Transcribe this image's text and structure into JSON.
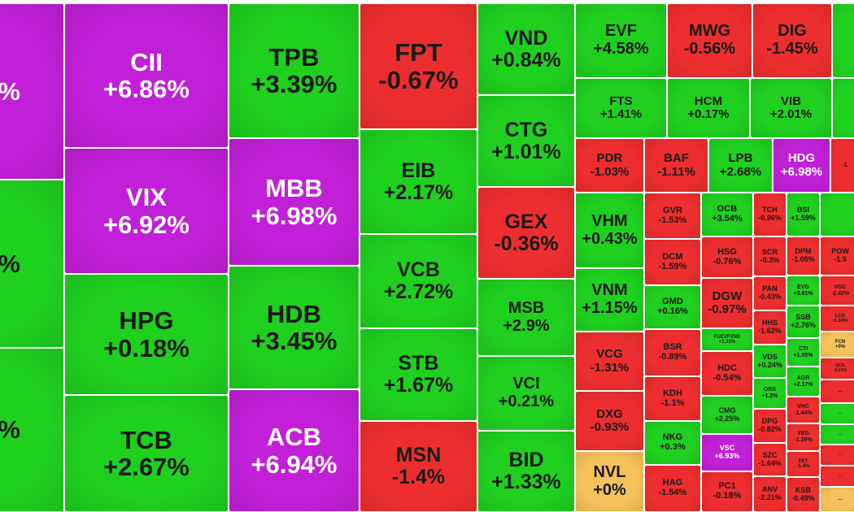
{
  "colors": {
    "ceiling": "#c21fd8",
    "up": "#1fd01f",
    "down": "#ee2e2e",
    "flat": "#f7c15a",
    "text_dark": "#1a1a1a",
    "text_light": "#ffffff"
  },
  "chart_data": {
    "type": "heatmap",
    "title": "",
    "items": [
      {
        "ticker": "",
        "change": "%",
        "status": "ceiling",
        "col": 0,
        "r": 0,
        "c": 0
      },
      {
        "ticker": "",
        "change": "%",
        "status": "up",
        "col": 0,
        "r": 0,
        "c": 1
      },
      {
        "ticker": "",
        "change": "%",
        "status": "up",
        "col": 0,
        "r": 0,
        "c": 2
      },
      {
        "ticker": "CII",
        "change": "+6.86%",
        "status": "ceiling",
        "col": 1,
        "r": 0,
        "c": 0
      },
      {
        "ticker": "VIX",
        "change": "+6.92%",
        "status": "ceiling",
        "col": 1,
        "r": 0,
        "c": 1
      },
      {
        "ticker": "HPG",
        "change": "+0.18%",
        "status": "up",
        "col": 1,
        "r": 0,
        "c": 2
      },
      {
        "ticker": "TCB",
        "change": "+2.67%",
        "status": "up",
        "col": 1,
        "r": 0,
        "c": 3
      },
      {
        "ticker": "TPB",
        "change": "+3.39%",
        "status": "up",
        "col": 2,
        "r": 0,
        "c": 0
      },
      {
        "ticker": "MBB",
        "change": "+6.98%",
        "status": "ceiling",
        "col": 2,
        "r": 0,
        "c": 1
      },
      {
        "ticker": "HDB",
        "change": "+3.45%",
        "status": "up",
        "col": 2,
        "r": 0,
        "c": 2
      },
      {
        "ticker": "ACB",
        "change": "+6.94%",
        "status": "ceiling",
        "col": 2,
        "r": 0,
        "c": 3
      },
      {
        "ticker": "FPT",
        "change": "-0.67%",
        "status": "down",
        "col": 3,
        "r": 0,
        "c": 0
      },
      {
        "ticker": "EIB",
        "change": "+2.17%",
        "status": "up",
        "col": 3,
        "r": 0,
        "c": 1
      },
      {
        "ticker": "VCB",
        "change": "+2.72%",
        "status": "up",
        "col": 3,
        "r": 0,
        "c": 2
      },
      {
        "ticker": "STB",
        "change": "+1.67%",
        "status": "up",
        "col": 3,
        "r": 0,
        "c": 3
      },
      {
        "ticker": "MSN",
        "change": "-1.4%",
        "status": "down",
        "col": 3,
        "r": 0,
        "c": 4
      },
      {
        "ticker": "VND",
        "change": "+0.84%",
        "status": "up",
        "col": 4,
        "r": 0,
        "c": 0
      },
      {
        "ticker": "CTG",
        "change": "+1.01%",
        "status": "up",
        "col": 4,
        "r": 0,
        "c": 1
      },
      {
        "ticker": "GEX",
        "change": "-0.36%",
        "status": "down",
        "col": 4,
        "r": 0,
        "c": 2
      },
      {
        "ticker": "MSB",
        "change": "+2.9%",
        "status": "up",
        "col": 4,
        "r": 0,
        "c": 3
      },
      {
        "ticker": "VCI",
        "change": "+0.21%",
        "status": "up",
        "col": 4,
        "r": 0,
        "c": 4
      },
      {
        "ticker": "BID",
        "change": "+1.33%",
        "status": "up",
        "col": 4,
        "r": 0,
        "c": 5
      },
      {
        "ticker": "EVF",
        "change": "+4.58%",
        "status": "up",
        "col": 5,
        "r": 0,
        "c": 0
      },
      {
        "ticker": "MWG",
        "change": "-0.56%",
        "status": "down",
        "col": 5,
        "r": 0,
        "c": 1
      },
      {
        "ticker": "DIG",
        "change": "-1.45%",
        "status": "down",
        "col": 5,
        "r": 0,
        "c": 2
      },
      {
        "ticker": "",
        "change": "",
        "status": "up",
        "col": 5,
        "r": 0,
        "c": 3
      },
      {
        "ticker": "FTS",
        "change": "+1.41%",
        "status": "up",
        "col": 5,
        "r": 1,
        "c": 0
      },
      {
        "ticker": "HCM",
        "change": "+0.17%",
        "status": "up",
        "col": 5,
        "r": 1,
        "c": 1
      },
      {
        "ticker": "VIB",
        "change": "+2.01%",
        "status": "up",
        "col": 5,
        "r": 1,
        "c": 2
      },
      {
        "ticker": "",
        "change": "",
        "status": "up",
        "col": 5,
        "r": 1,
        "c": 3
      },
      {
        "ticker": "PDR",
        "change": "-1.03%",
        "status": "down",
        "col": 5,
        "r": 2,
        "c": 0
      },
      {
        "ticker": "BAF",
        "change": "-1.11%",
        "status": "down",
        "col": 5,
        "r": 2,
        "c": 1
      },
      {
        "ticker": "LPB",
        "change": "+2.68%",
        "status": "up",
        "col": 5,
        "r": 2,
        "c": 2
      },
      {
        "ticker": "HDG",
        "change": "+6.98%",
        "status": "ceiling",
        "col": 5,
        "r": 2,
        "c": 3
      },
      {
        "ticker": "",
        "change": "-1.",
        "status": "down",
        "col": 5,
        "r": 2,
        "c": 4
      },
      {
        "ticker": "VHM",
        "change": "+0.43%",
        "status": "up",
        "col": 6,
        "r": 0,
        "c": 0
      },
      {
        "ticker": "VNM",
        "change": "+1.15%",
        "status": "up",
        "col": 6,
        "r": 0,
        "c": 1
      },
      {
        "ticker": "VCG",
        "change": "-1.31%",
        "status": "down",
        "col": 6,
        "r": 0,
        "c": 2
      },
      {
        "ticker": "DXG",
        "change": "-0.93%",
        "status": "down",
        "col": 6,
        "r": 0,
        "c": 3
      },
      {
        "ticker": "NVL",
        "change": "+0%",
        "status": "flat",
        "col": 6,
        "r": 0,
        "c": 4
      },
      {
        "ticker": "GVR",
        "change": "-1.53%",
        "status": "down",
        "col": 7,
        "r": 0,
        "c": 0
      },
      {
        "ticker": "DCM",
        "change": "-1.59%",
        "status": "down",
        "col": 7,
        "r": 0,
        "c": 1
      },
      {
        "ticker": "GMD",
        "change": "+0.16%",
        "status": "up",
        "col": 7,
        "r": 0,
        "c": 2
      },
      {
        "ticker": "BSR",
        "change": "-0.89%",
        "status": "down",
        "col": 7,
        "r": 0,
        "c": 3
      },
      {
        "ticker": "KDH",
        "change": "-1.1%",
        "status": "down",
        "col": 7,
        "r": 0,
        "c": 4
      },
      {
        "ticker": "NKG",
        "change": "+0.3%",
        "status": "up",
        "col": 7,
        "r": 0,
        "c": 5
      },
      {
        "ticker": "HAG",
        "change": "-1.54%",
        "status": "down",
        "col": 7,
        "r": 0,
        "c": 6
      },
      {
        "ticker": "OCB",
        "change": "+3.54%",
        "status": "up",
        "col": 8,
        "r": 0,
        "c": 0
      },
      {
        "ticker": "HSG",
        "change": "-0.76%",
        "status": "down",
        "col": 8,
        "r": 0,
        "c": 1
      },
      {
        "ticker": "DGW",
        "change": "-0.97%",
        "status": "down",
        "col": 8,
        "r": 0,
        "c": 2
      },
      {
        "ticker": "FUEVFVND",
        "change": "+1.31%",
        "status": "up",
        "col": 8,
        "r": 0,
        "c": 3
      },
      {
        "ticker": "HDC",
        "change": "-0.54%",
        "status": "down",
        "col": 8,
        "r": 0,
        "c": 4
      },
      {
        "ticker": "CMG",
        "change": "+2.25%",
        "status": "up",
        "col": 8,
        "r": 0,
        "c": 5
      },
      {
        "ticker": "VSC",
        "change": "+6.93%",
        "status": "ceiling",
        "col": 8,
        "r": 0,
        "c": 6
      },
      {
        "ticker": "PC1",
        "change": "-0.18%",
        "status": "down",
        "col": 8,
        "r": 0,
        "c": 7
      },
      {
        "ticker": "TCH",
        "change": "-0.96%",
        "status": "down",
        "col": 9,
        "r": 0,
        "c": 0
      },
      {
        "ticker": "SCR",
        "change": "-0.3%",
        "status": "down",
        "col": 9,
        "r": 0,
        "c": 1
      },
      {
        "ticker": "PAN",
        "change": "-0.43%",
        "status": "down",
        "col": 9,
        "r": 0,
        "c": 2
      },
      {
        "ticker": "HHS",
        "change": "-1.62%",
        "status": "down",
        "col": 9,
        "r": 0,
        "c": 3
      },
      {
        "ticker": "VDS",
        "change": "+0.24%",
        "status": "up",
        "col": 9,
        "r": 0,
        "c": 4
      },
      {
        "ticker": "ORS",
        "change": "+1.2%",
        "status": "up",
        "col": 9,
        "r": 0,
        "c": 5
      },
      {
        "ticker": "DPG",
        "change": "-0.82%",
        "status": "down",
        "col": 9,
        "r": 0,
        "c": 6
      },
      {
        "ticker": "SZC",
        "change": "-1.64%",
        "status": "down",
        "col": 9,
        "r": 0,
        "c": 7
      },
      {
        "ticker": "ANV",
        "change": "-2.21%",
        "status": "down",
        "col": 9,
        "r": 0,
        "c": 8
      },
      {
        "ticker": "BSI",
        "change": "+1.59%",
        "status": "up",
        "col": 10,
        "r": 0,
        "c": 0
      },
      {
        "ticker": "DPM",
        "change": "-1.05%",
        "status": "down",
        "col": 10,
        "r": 0,
        "c": 1
      },
      {
        "ticker": "EVG",
        "change": "+3.61%",
        "status": "up",
        "col": 10,
        "r": 0,
        "c": 2
      },
      {
        "ticker": "SSB",
        "change": "+2.76%",
        "status": "up",
        "col": 10,
        "r": 0,
        "c": 3
      },
      {
        "ticker": "CTI",
        "change": "+1.05%",
        "status": "up",
        "col": 10,
        "r": 0,
        "c": 4
      },
      {
        "ticker": "AGR",
        "change": "+2.17%",
        "status": "up",
        "col": 10,
        "r": 0,
        "c": 5
      },
      {
        "ticker": "VHC",
        "change": "-1.44%",
        "status": "down",
        "col": 10,
        "r": 0,
        "c": 6
      },
      {
        "ticker": "YEG",
        "change": "-1.26%",
        "status": "down",
        "col": 10,
        "r": 0,
        "c": 7
      },
      {
        "ticker": "PET",
        "change": "-1.4%",
        "status": "down",
        "col": 10,
        "r": 0,
        "c": 8
      },
      {
        "ticker": "KSB",
        "change": "-0.49%",
        "status": "down",
        "col": 10,
        "r": 0,
        "c": 9
      },
      {
        "ticker": "",
        "change": "",
        "status": "up",
        "col": 11,
        "r": 0,
        "c": 0
      },
      {
        "ticker": "POW",
        "change": "-1.5",
        "status": "down",
        "col": 11,
        "r": 0,
        "c": 1
      },
      {
        "ticker": "VGC",
        "change": "-2.42%",
        "status": "down",
        "col": 11,
        "r": 0,
        "c": 2
      },
      {
        "ticker": "LCG",
        "change": "-1.24%",
        "status": "down",
        "col": 11,
        "r": 0,
        "c": 3
      },
      {
        "ticker": "FCN",
        "change": "+0%",
        "status": "flat",
        "col": 11,
        "r": 0,
        "c": 4
      },
      {
        "ticker": "QCG",
        "change": "-6.21%",
        "status": "down",
        "col": 11,
        "r": 0,
        "c": 5
      },
      {
        "ticker": "...",
        "change": "",
        "status": "down",
        "col": 11,
        "r": 0,
        "c": 6
      },
      {
        "ticker": "...",
        "change": "",
        "status": "up",
        "col": 11,
        "r": 0,
        "c": 7
      },
      {
        "ticker": "...",
        "change": "",
        "status": "up",
        "col": 11,
        "r": 0,
        "c": 8
      },
      {
        "ticker": "...",
        "change": "",
        "status": "down",
        "col": 11,
        "r": 0,
        "c": 9
      },
      {
        "ticker": "...",
        "change": "",
        "status": "down",
        "col": 11,
        "r": 0,
        "c": 10
      },
      {
        "ticker": "...",
        "change": "",
        "status": "flat",
        "col": 11,
        "r": 0,
        "c": 11
      }
    ]
  }
}
